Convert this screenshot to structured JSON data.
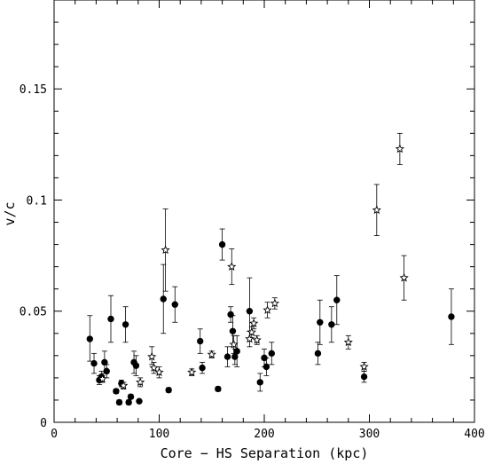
{
  "chart_data": {
    "type": "scatter",
    "xlabel": "Core − HS Separation (kpc)",
    "ylabel": "v/c",
    "xlim": [
      0,
      400
    ],
    "ylim": [
      0,
      0.19
    ],
    "x_ticks": [
      0,
      100,
      200,
      300,
      400
    ],
    "x_tick_labels": [
      "0",
      "100",
      "200",
      "300",
      "400"
    ],
    "y_ticks": [
      0,
      0.05,
      0.1,
      0.15
    ],
    "y_tick_labels": [
      "0",
      "0.05",
      "0.1",
      "0.15"
    ],
    "series": [
      {
        "marker": "filled-circle",
        "points": [
          {
            "x": 34,
            "y": 0.0375,
            "lo": 0.0275,
            "hi": 0.048
          },
          {
            "x": 38,
            "y": 0.0265,
            "lo": 0.022,
            "hi": 0.031
          },
          {
            "x": 43,
            "y": 0.019,
            "lo": 0.017,
            "hi": 0.021
          },
          {
            "x": 45,
            "y": 0.0205,
            "lo": 0.018,
            "hi": 0.023
          },
          {
            "x": 48,
            "y": 0.027,
            "lo": 0.022,
            "hi": 0.032
          },
          {
            "x": 50,
            "y": 0.023,
            "lo": 0.02,
            "hi": 0.026
          },
          {
            "x": 54,
            "y": 0.0465,
            "lo": 0.036,
            "hi": 0.057
          },
          {
            "x": 59,
            "y": 0.014,
            "lo": 0.013,
            "hi": 0.015
          },
          {
            "x": 62,
            "y": 0.009,
            "lo": 0.008,
            "hi": 0.01
          },
          {
            "x": 64,
            "y": 0.0175,
            "lo": 0.016,
            "hi": 0.019
          },
          {
            "x": 68,
            "y": 0.044,
            "lo": 0.036,
            "hi": 0.052
          },
          {
            "x": 71,
            "y": 0.009,
            "lo": 0.008,
            "hi": 0.01
          },
          {
            "x": 73,
            "y": 0.0115,
            "lo": 0.0105,
            "hi": 0.0125
          },
          {
            "x": 76,
            "y": 0.027,
            "lo": 0.022,
            "hi": 0.032
          },
          {
            "x": 78,
            "y": 0.0255,
            "lo": 0.021,
            "hi": 0.03
          },
          {
            "x": 81,
            "y": 0.0095,
            "lo": 0.009,
            "hi": 0.01
          },
          {
            "x": 104,
            "y": 0.0555,
            "lo": 0.04,
            "hi": 0.071
          },
          {
            "x": 109,
            "y": 0.0145,
            "lo": 0.0135,
            "hi": 0.0155
          },
          {
            "x": 115,
            "y": 0.053,
            "lo": 0.045,
            "hi": 0.061
          },
          {
            "x": 139,
            "y": 0.0365,
            "lo": 0.031,
            "hi": 0.042
          },
          {
            "x": 141,
            "y": 0.0245,
            "lo": 0.022,
            "hi": 0.027
          },
          {
            "x": 156,
            "y": 0.015,
            "lo": 0.014,
            "hi": 0.016
          },
          {
            "x": 160,
            "y": 0.08,
            "lo": 0.073,
            "hi": 0.087
          },
          {
            "x": 165,
            "y": 0.0295,
            "lo": 0.025,
            "hi": 0.034
          },
          {
            "x": 168,
            "y": 0.0485,
            "lo": 0.045,
            "hi": 0.052
          },
          {
            "x": 170,
            "y": 0.041,
            "lo": 0.034,
            "hi": 0.048
          },
          {
            "x": 172,
            "y": 0.0295,
            "lo": 0.026,
            "hi": 0.033
          },
          {
            "x": 174,
            "y": 0.032,
            "lo": 0.025,
            "hi": 0.039
          },
          {
            "x": 186,
            "y": 0.05,
            "lo": 0.041,
            "hi": 0.065
          },
          {
            "x": 196,
            "y": 0.018,
            "lo": 0.014,
            "hi": 0.022
          },
          {
            "x": 200,
            "y": 0.029,
            "lo": 0.025,
            "hi": 0.033
          },
          {
            "x": 202,
            "y": 0.025,
            "lo": 0.021,
            "hi": 0.029
          },
          {
            "x": 207,
            "y": 0.031,
            "lo": 0.026,
            "hi": 0.036
          },
          {
            "x": 251,
            "y": 0.031,
            "lo": 0.026,
            "hi": 0.036
          },
          {
            "x": 253,
            "y": 0.045,
            "lo": 0.035,
            "hi": 0.055
          },
          {
            "x": 264,
            "y": 0.044,
            "lo": 0.036,
            "hi": 0.052
          },
          {
            "x": 269,
            "y": 0.055,
            "lo": 0.044,
            "hi": 0.066
          },
          {
            "x": 295,
            "y": 0.0205,
            "lo": 0.018,
            "hi": 0.023
          },
          {
            "x": 378,
            "y": 0.0475,
            "lo": 0.035,
            "hi": 0.06
          }
        ]
      },
      {
        "marker": "open-star",
        "points": [
          {
            "x": 46,
            "y": 0.0195,
            "lo": 0.018,
            "hi": 0.021
          },
          {
            "x": 66,
            "y": 0.0165,
            "lo": 0.015,
            "hi": 0.018
          },
          {
            "x": 82,
            "y": 0.018,
            "lo": 0.016,
            "hi": 0.02
          },
          {
            "x": 93,
            "y": 0.0295,
            "lo": 0.026,
            "hi": 0.034
          },
          {
            "x": 95,
            "y": 0.0245,
            "lo": 0.022,
            "hi": 0.027
          },
          {
            "x": 100,
            "y": 0.0225,
            "lo": 0.02,
            "hi": 0.025
          },
          {
            "x": 106,
            "y": 0.0775,
            "lo": 0.059,
            "hi": 0.096
          },
          {
            "x": 131,
            "y": 0.0225,
            "lo": 0.021,
            "hi": 0.024
          },
          {
            "x": 150,
            "y": 0.0305,
            "lo": 0.029,
            "hi": 0.032
          },
          {
            "x": 169,
            "y": 0.07,
            "lo": 0.062,
            "hi": 0.078
          },
          {
            "x": 171,
            "y": 0.035,
            "lo": 0.031,
            "hi": 0.039
          },
          {
            "x": 186,
            "y": 0.0375,
            "lo": 0.034,
            "hi": 0.041
          },
          {
            "x": 188,
            "y": 0.0405,
            "lo": 0.038,
            "hi": 0.043
          },
          {
            "x": 190,
            "y": 0.0445,
            "lo": 0.042,
            "hi": 0.047
          },
          {
            "x": 193,
            "y": 0.037,
            "lo": 0.035,
            "hi": 0.039
          },
          {
            "x": 203,
            "y": 0.0505,
            "lo": 0.047,
            "hi": 0.054
          },
          {
            "x": 210,
            "y": 0.0535,
            "lo": 0.051,
            "hi": 0.056
          },
          {
            "x": 280,
            "y": 0.036,
            "lo": 0.033,
            "hi": 0.039
          },
          {
            "x": 295,
            "y": 0.025,
            "lo": 0.023,
            "hi": 0.027
          },
          {
            "x": 307,
            "y": 0.0955,
            "lo": 0.084,
            "hi": 0.107
          },
          {
            "x": 329,
            "y": 0.123,
            "lo": 0.116,
            "hi": 0.13
          },
          {
            "x": 333,
            "y": 0.065,
            "lo": 0.055,
            "hi": 0.075
          }
        ]
      }
    ]
  }
}
